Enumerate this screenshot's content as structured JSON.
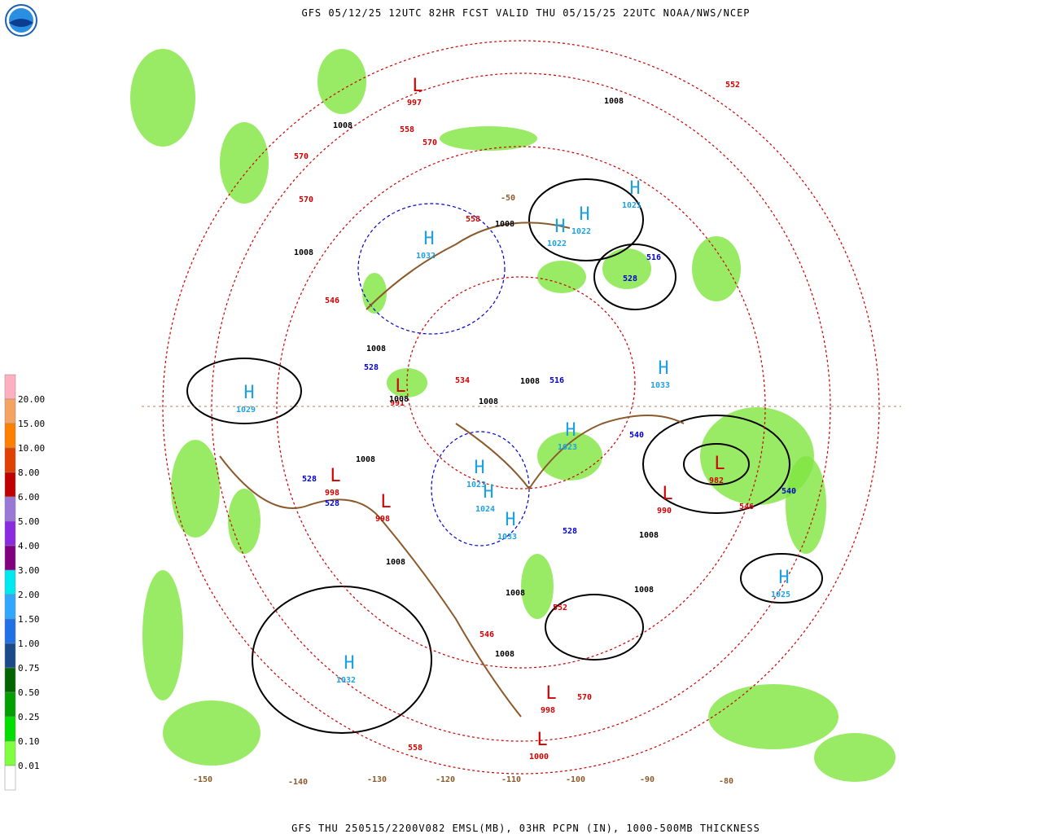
{
  "header": {
    "title": "GFS 05/12/25 12UTC 82HR FCST VALID THU 05/15/25 22UTC NOAA/NWS/NCEP"
  },
  "footer": {
    "caption": "GFS THU 250515/2200V082 EMSL(MB), 03HR PCPN (IN), 1000-500MB THICKNESS"
  },
  "legend": {
    "labels": [
      "20.00",
      "15.00",
      "10.00",
      "8.00",
      "6.00",
      "5.00",
      "4.00",
      "3.00",
      "2.00",
      "1.50",
      "1.00",
      "0.75",
      "0.50",
      "0.25",
      "0.10",
      "0.01"
    ],
    "colors": [
      "#ffb0c0",
      "#f4a460",
      "#ff7f00",
      "#e04000",
      "#c00000",
      "#9a78d8",
      "#8a2be2",
      "#800080",
      "#00e8f0",
      "#30a8ff",
      "#2070e8",
      "#1a4a8a",
      "#006400",
      "#00a000",
      "#00e000",
      "#80ff40",
      "#ffffff"
    ]
  },
  "map": {
    "pressure_centers": [
      {
        "symbol": "H",
        "value": "1029"
      },
      {
        "symbol": "H",
        "value": "1032"
      },
      {
        "symbol": "H",
        "value": "1032"
      },
      {
        "symbol": "H",
        "value": "1022"
      },
      {
        "symbol": "H",
        "value": "1022"
      },
      {
        "symbol": "H",
        "value": "1033"
      },
      {
        "symbol": "H",
        "value": "1025"
      },
      {
        "symbol": "H",
        "value": "1023"
      },
      {
        "symbol": "H",
        "value": "1024"
      },
      {
        "symbol": "H",
        "value": "1033"
      },
      {
        "symbol": "H",
        "value": "1023"
      },
      {
        "symbol": "H",
        "value": "1021"
      },
      {
        "symbol": "L",
        "value": "998"
      },
      {
        "symbol": "L",
        "value": "998"
      },
      {
        "symbol": "L",
        "value": "998"
      },
      {
        "symbol": "L",
        "value": "1000"
      },
      {
        "symbol": "L",
        "value": "982"
      },
      {
        "symbol": "L",
        "value": "991"
      },
      {
        "symbol": "L",
        "value": "997"
      },
      {
        "symbol": "L",
        "value": "990"
      }
    ],
    "thickness_red": [
      "570",
      "570",
      "558",
      "546",
      "558",
      "570",
      "546",
      "552",
      "558",
      "570",
      "534",
      "546",
      "552"
    ],
    "thickness_blue": [
      "528",
      "528",
      "528",
      "516",
      "540",
      "528",
      "540",
      "516",
      "528"
    ],
    "isobar_labels": [
      "1008",
      "1008",
      "1008",
      "1008",
      "1008",
      "1008",
      "1008",
      "1008",
      "1008",
      "1008",
      "1008",
      "1008",
      "1008",
      "1008"
    ],
    "longitudes": [
      "-150",
      "-140",
      "-130",
      "-120",
      "-110",
      "-100",
      "-90",
      "-80",
      "-50"
    ]
  }
}
